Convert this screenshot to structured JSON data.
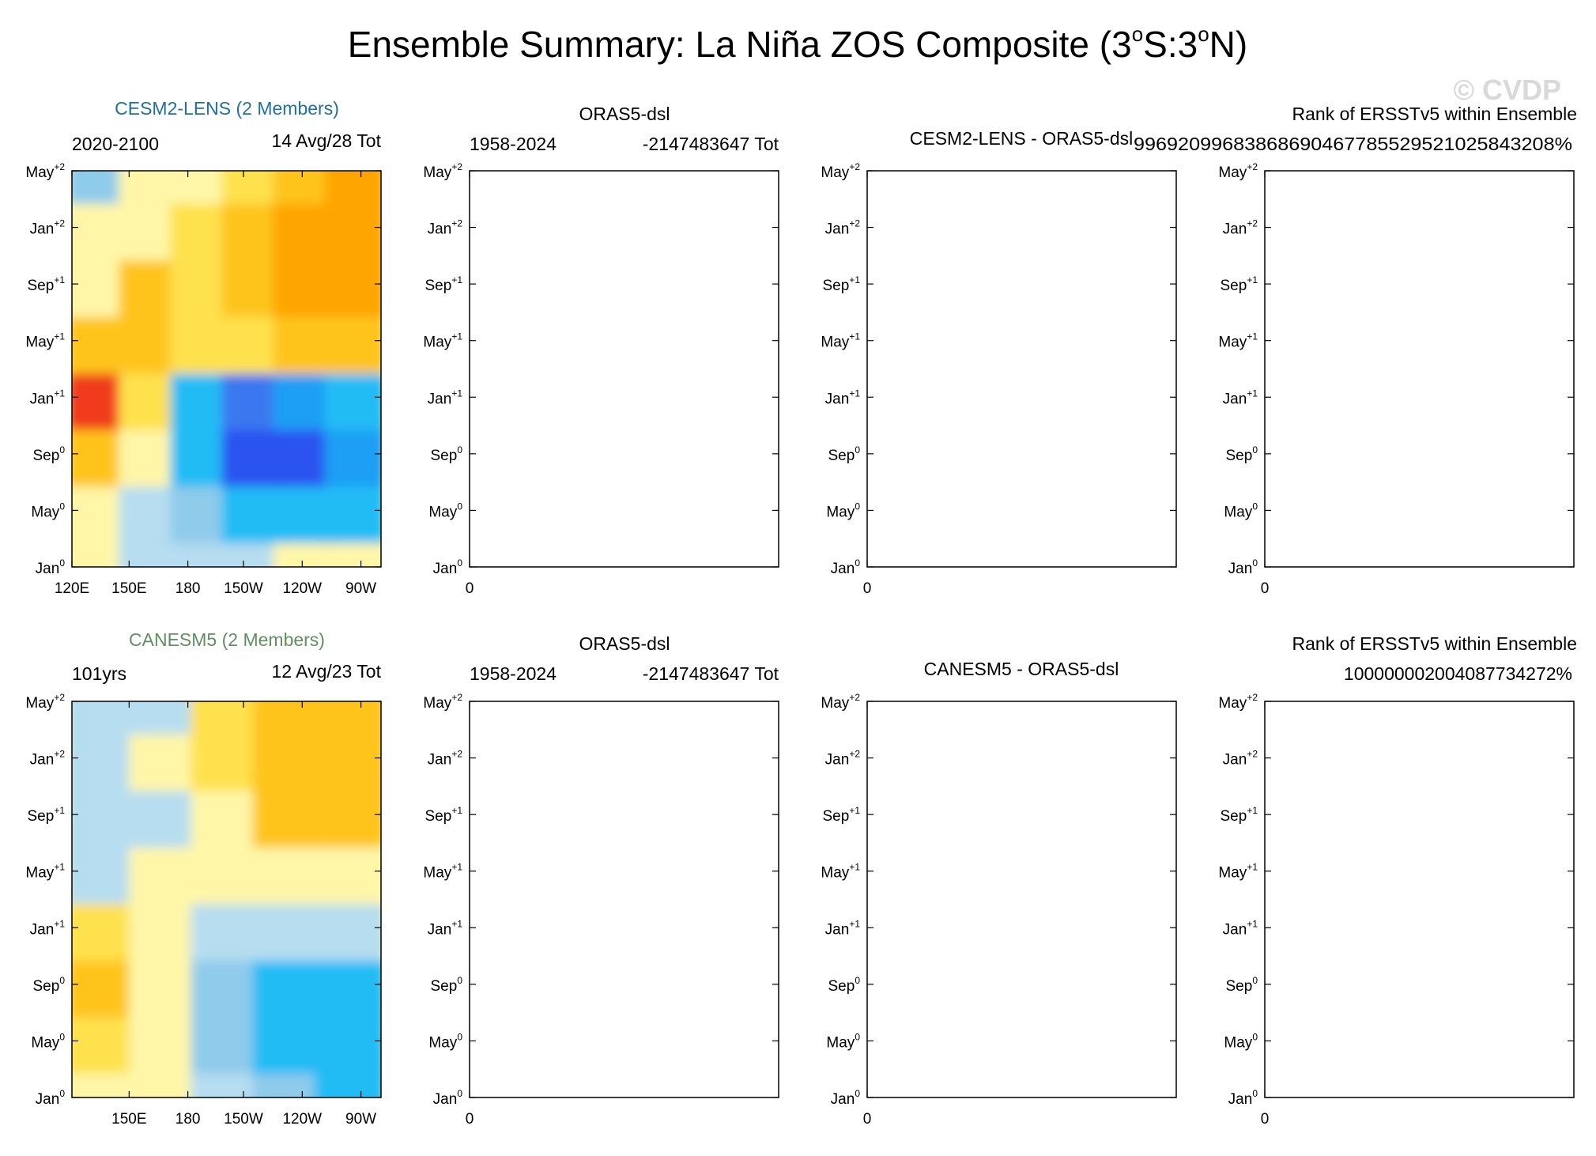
{
  "figure": {
    "title": "Ensemble Summary: La Niña ZOS Composite (3",
    "title_s": "S:3",
    "title_n": "N)",
    "title_deg": "o",
    "watermark": "© CVDP"
  },
  "colors": {
    "axis": "#000000",
    "watermark": "#d9d9d9",
    "cesm_title": "#1f6f9f",
    "canesm_title": "#5f8f5f",
    "contour_levels": [
      "#1020e8",
      "#2a52f0",
      "#3a78f0",
      "#1f9ff5",
      "#22bcf5",
      "#8fcbeb",
      "#b6ddf0",
      "#fff6a8",
      "#ffe14d",
      "#ffc41a",
      "#ffa500",
      "#ff7a1a",
      "#f03a1a",
      "#dd0000"
    ]
  },
  "y_ticks": [
    {
      "base": "Jan",
      "sup": "0"
    },
    {
      "base": "May",
      "sup": "0"
    },
    {
      "base": "Sep",
      "sup": "0"
    },
    {
      "base": "Jan",
      "sup": "+1"
    },
    {
      "base": "May",
      "sup": "+1"
    },
    {
      "base": "Sep",
      "sup": "+1"
    },
    {
      "base": "Jan",
      "sup": "+2"
    },
    {
      "base": "May",
      "sup": "+2"
    }
  ],
  "rows": [
    {
      "model": {
        "label": "CESM2-LENS (2 Members)",
        "left_sub": "2020-2100",
        "right_sub": "14 Avg/28 Tot",
        "x_ticks": [
          "120E",
          "150E",
          "180",
          "150W",
          "120W",
          "90W"
        ]
      },
      "obs": {
        "label": "ORAS5-dsl",
        "left_sub": "1958-2024",
        "right_sub": "-2147483647 Tot",
        "x_tick": "0"
      },
      "diff": {
        "label": "CESM2-LENS - ORAS5-dsl",
        "x_tick": "0"
      },
      "rank": {
        "label": "Rank of ERSSTv5 within Ensemble",
        "value": "99692099683868690467785529521025843208%",
        "x_tick": "0"
      }
    },
    {
      "model": {
        "label": "CANESM5 (2 Members)",
        "left_sub": "101yrs",
        "right_sub": "12 Avg/23 Tot",
        "x_ticks": [
          "150E",
          "180",
          "150W",
          "120W",
          "90W"
        ]
      },
      "obs": {
        "label": "ORAS5-dsl",
        "left_sub": "1958-2024",
        "right_sub": "-2147483647 Tot",
        "x_tick": "0"
      },
      "diff": {
        "label": "CANESM5 - ORAS5-dsl",
        "x_tick": "0"
      },
      "rank": {
        "label": "Rank of ERSSTv5 within Ensemble",
        "value": "100000002004087734272%",
        "x_tick": "0"
      }
    }
  ],
  "chart_data": [
    {
      "type": "heatmap",
      "title": "CESM2-LENS (2 Members)",
      "x": [
        "120E",
        "150E",
        "180",
        "150W",
        "120W",
        "90W"
      ],
      "y": [
        "Jan0",
        "May0",
        "Sep0",
        "Jan+1",
        "May+1",
        "Sep+1",
        "Jan+2",
        "May+2"
      ],
      "field": "ZOS composite anomaly (contour level index, -7 deep blue … +6 red)",
      "values": [
        [
          0,
          -1,
          -1,
          -1,
          0,
          0
        ],
        [
          0,
          -1,
          -2,
          -3,
          -3,
          -3
        ],
        [
          2,
          0,
          -3,
          -6,
          -6,
          -4
        ],
        [
          5,
          1,
          -3,
          -5,
          -4,
          -3
        ],
        [
          2,
          2,
          1,
          1,
          2,
          2
        ],
        [
          0,
          2,
          1,
          2,
          3,
          3
        ],
        [
          0,
          0,
          1,
          2,
          3,
          3
        ],
        [
          -2,
          0,
          0,
          1,
          2,
          3
        ]
      ]
    },
    {
      "type": "heatmap",
      "title": "CANESM5 (2 Members)",
      "x": [
        "150E",
        "180",
        "150W",
        "120W",
        "90W"
      ],
      "y": [
        "Jan0",
        "May0",
        "Sep0",
        "Jan+1",
        "May+1",
        "Sep+1",
        "Jan+2",
        "May+2"
      ],
      "field": "ZOS composite anomaly (contour level index, -7 deep blue … +6 red)",
      "values": [
        [
          0,
          0,
          -1,
          -2,
          -3
        ],
        [
          1,
          0,
          -2,
          -3,
          -3
        ],
        [
          2,
          0,
          -2,
          -3,
          -3
        ],
        [
          1,
          0,
          -1,
          -1,
          -1
        ],
        [
          -1,
          0,
          0,
          0,
          0
        ],
        [
          -1,
          -1,
          0,
          2,
          2
        ],
        [
          -1,
          0,
          1,
          2,
          2
        ],
        [
          -1,
          -1,
          1,
          2,
          2
        ]
      ]
    }
  ]
}
